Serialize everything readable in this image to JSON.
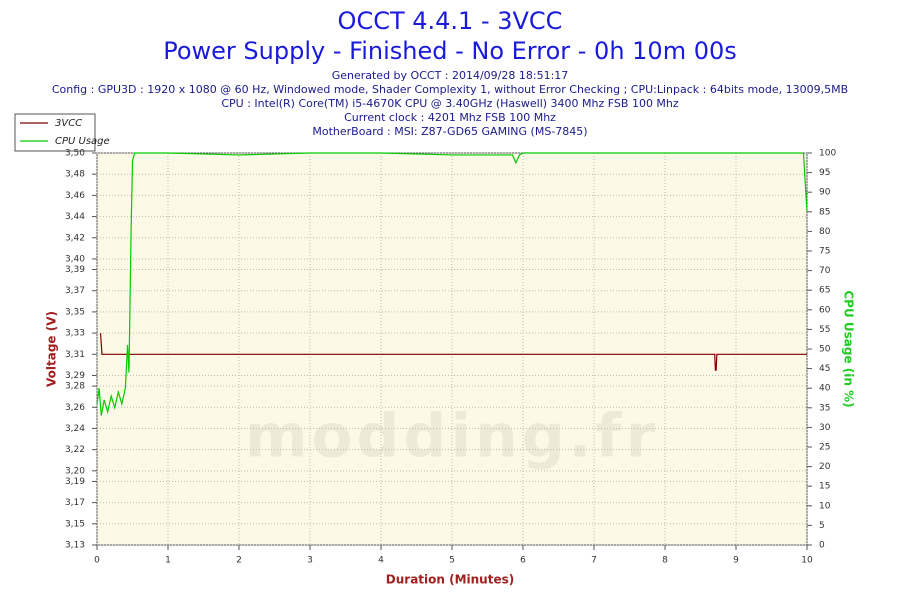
{
  "chart_data": {
    "type": "line",
    "title": "OCCT 4.4.1 - 3VCC",
    "subtitle": "Power Supply - Finished - No Error - 0h 10m 00s",
    "info_lines": [
      "Generated by OCCT : 2014/09/28 18:51:17",
      "Config : GPU3D : 1920 x 1080 @ 60 Hz, Windowed mode, Shader Complexity 1, without Error Checking ; CPU:Linpack : 64bits mode, 13009,5MB",
      "CPU : Intel(R) Core(TM) i5-4670K CPU @ 3.40GHz (Haswell) 3400 Mhz FSB 100 Mhz",
      "Current clock : 4201 Mhz FSB 100 Mhz",
      "MotherBoard : MSI: Z87-GD65 GAMING (MS-7845)"
    ],
    "watermark": "modding.fr",
    "x_label": "Duration (Minutes)",
    "y_label": "Voltage (V)",
    "y2_label": "CPU Usage (in %)",
    "xlim": [
      0,
      10
    ],
    "xticks": [
      0,
      1,
      2,
      3,
      4,
      5,
      6,
      7,
      8,
      9,
      10
    ],
    "ylim": [
      3.13,
      3.5
    ],
    "yticks": [
      {
        "value": 3.13,
        "label": "3,13"
      },
      {
        "value": 3.15,
        "label": "3,15"
      },
      {
        "value": 3.17,
        "label": "3,17"
      },
      {
        "value": 3.19,
        "label": "3,19"
      },
      {
        "value": 3.2,
        "label": "3,20"
      },
      {
        "value": 3.22,
        "label": "3,22"
      },
      {
        "value": 3.24,
        "label": "3,24"
      },
      {
        "value": 3.26,
        "label": "3,26"
      },
      {
        "value": 3.28,
        "label": "3,28"
      },
      {
        "value": 3.29,
        "label": "3,29"
      },
      {
        "value": 3.31,
        "label": "3,31"
      },
      {
        "value": 3.33,
        "label": "3,33"
      },
      {
        "value": 3.35,
        "label": "3,35"
      },
      {
        "value": 3.37,
        "label": "3,37"
      },
      {
        "value": 3.39,
        "label": "3,39"
      },
      {
        "value": 3.4,
        "label": "3,40"
      },
      {
        "value": 3.42,
        "label": "3,42"
      },
      {
        "value": 3.44,
        "label": "3,44"
      },
      {
        "value": 3.46,
        "label": "3,46"
      },
      {
        "value": 3.48,
        "label": "3,48"
      },
      {
        "value": 3.5,
        "label": "3,50"
      }
    ],
    "y2lim": [
      0,
      100
    ],
    "y2ticks": [
      0,
      5,
      10,
      15,
      20,
      25,
      30,
      35,
      40,
      45,
      50,
      55,
      60,
      65,
      70,
      75,
      80,
      85,
      90,
      95,
      100
    ],
    "grid": true,
    "legend": "top-left",
    "series": [
      {
        "name": "3VCC",
        "color": "#800000",
        "x": [
          0.05,
          0.07,
          0.1,
          8.7,
          8.71,
          8.72,
          8.73,
          10
        ],
        "values": [
          3.33,
          3.31,
          3.31,
          3.31,
          3.295,
          3.295,
          3.31,
          3.31
        ]
      },
      {
        "name": "CPU Usage",
        "color": "#00cc00",
        "axis": "y2",
        "x": [
          0,
          0.03,
          0.06,
          0.1,
          0.15,
          0.2,
          0.25,
          0.3,
          0.35,
          0.4,
          0.43,
          0.45,
          0.48,
          0.5,
          0.53,
          1,
          2,
          3,
          4,
          5,
          5.85,
          5.9,
          5.95,
          6,
          7,
          8,
          9,
          9.95,
          10
        ],
        "values": [
          36,
          40,
          33,
          37,
          34,
          38,
          35,
          39,
          36,
          40,
          51,
          44,
          80,
          98,
          100,
          100,
          99.5,
          100,
          100,
          99.5,
          99.5,
          97.5,
          99.5,
          100,
          100,
          100,
          100,
          100,
          85
        ]
      }
    ]
  }
}
